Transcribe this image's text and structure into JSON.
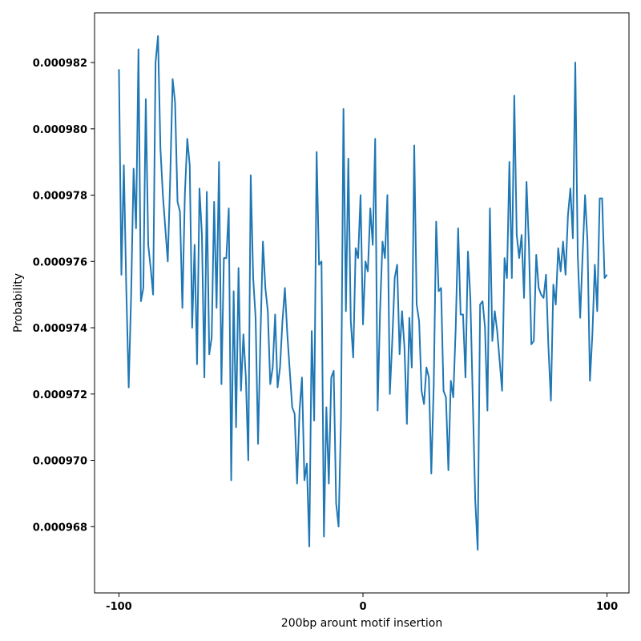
{
  "chart_data": {
    "type": "line",
    "title": "",
    "xlabel": "200bp arount motif insertion",
    "ylabel": "Probability",
    "xlim": [
      -110,
      109
    ],
    "ylim": [
      0.000966,
      0.0009835
    ],
    "xticks": [
      -100,
      0,
      100
    ],
    "xtick_labels": [
      "-100",
      "0",
      "100"
    ],
    "yticks": [
      0.000968,
      0.00097,
      0.000972,
      0.000974,
      0.000976,
      0.000978,
      0.00098,
      0.000982
    ],
    "ytick_labels": [
      "0.000968",
      "0.000970",
      "0.000972",
      "0.000974",
      "0.000976",
      "0.000978",
      "0.000980",
      "0.000982"
    ],
    "grid": false,
    "legend": "none",
    "line_color": "#1f77b4",
    "series": [
      {
        "x_start": -100,
        "x_step": 1,
        "values": [
          0.0009818,
          0.0009756,
          0.0009789,
          0.0009752,
          0.0009722,
          0.000975,
          0.0009788,
          0.000977,
          0.0009824,
          0.0009748,
          0.0009752,
          0.0009809,
          0.0009765,
          0.0009758,
          0.000975,
          0.000982,
          0.0009828,
          0.0009794,
          0.000978,
          0.000977,
          0.000976,
          0.0009785,
          0.0009815,
          0.0009808,
          0.0009778,
          0.0009775,
          0.0009746,
          0.000978,
          0.0009797,
          0.0009789,
          0.000974,
          0.0009765,
          0.0009729,
          0.0009782,
          0.0009768,
          0.0009725,
          0.0009781,
          0.0009732,
          0.0009737,
          0.0009778,
          0.0009746,
          0.000979,
          0.0009723,
          0.0009761,
          0.0009761,
          0.0009776,
          0.0009694,
          0.0009751,
          0.000971,
          0.0009758,
          0.0009721,
          0.0009738,
          0.0009725,
          0.00097,
          0.0009786,
          0.0009755,
          0.0009743,
          0.0009705,
          0.0009738,
          0.0009766,
          0.0009752,
          0.0009745,
          0.0009723,
          0.0009728,
          0.0009744,
          0.0009722,
          0.0009728,
          0.0009742,
          0.0009752,
          0.0009738,
          0.0009727,
          0.0009716,
          0.0009714,
          0.0009693,
          0.0009715,
          0.0009725,
          0.0009694,
          0.0009699,
          0.0009674,
          0.0009739,
          0.0009712,
          0.0009793,
          0.0009759,
          0.000976,
          0.0009677,
          0.0009716,
          0.0009693,
          0.0009725,
          0.0009727,
          0.0009687,
          0.000968,
          0.0009713,
          0.0009806,
          0.0009745,
          0.0009791,
          0.0009742,
          0.0009731,
          0.0009764,
          0.0009761,
          0.000978,
          0.0009741,
          0.000976,
          0.0009757,
          0.0009776,
          0.0009765,
          0.0009797,
          0.0009715,
          0.0009745,
          0.0009766,
          0.0009761,
          0.000978,
          0.000972,
          0.0009736,
          0.0009755,
          0.0009759,
          0.0009732,
          0.0009745,
          0.0009734,
          0.0009711,
          0.0009743,
          0.0009728,
          0.0009795,
          0.0009747,
          0.0009742,
          0.0009721,
          0.0009717,
          0.0009728,
          0.0009725,
          0.0009696,
          0.0009723,
          0.0009772,
          0.0009751,
          0.0009752,
          0.0009721,
          0.0009719,
          0.0009697,
          0.0009724,
          0.0009719,
          0.000974,
          0.000977,
          0.0009744,
          0.0009744,
          0.0009725,
          0.0009763,
          0.0009749,
          0.0009718,
          0.0009688,
          0.0009673,
          0.0009747,
          0.0009748,
          0.000974,
          0.0009715,
          0.0009776,
          0.0009736,
          0.0009745,
          0.0009739,
          0.000973,
          0.0009721,
          0.0009761,
          0.0009755,
          0.000979,
          0.0009755,
          0.000981,
          0.0009768,
          0.0009761,
          0.0009768,
          0.0009749,
          0.0009784,
          0.0009765,
          0.0009735,
          0.0009736,
          0.0009762,
          0.0009752,
          0.000975,
          0.0009749,
          0.0009756,
          0.0009734,
          0.0009718,
          0.0009753,
          0.0009747,
          0.0009764,
          0.0009757,
          0.0009766,
          0.0009756,
          0.0009774,
          0.0009782,
          0.0009767,
          0.000982,
          0.0009762,
          0.0009743,
          0.0009762,
          0.000978,
          0.0009766,
          0.0009724,
          0.0009738,
          0.0009759,
          0.0009745,
          0.0009779,
          0.0009779,
          0.0009755,
          0.0009756
        ]
      }
    ]
  }
}
